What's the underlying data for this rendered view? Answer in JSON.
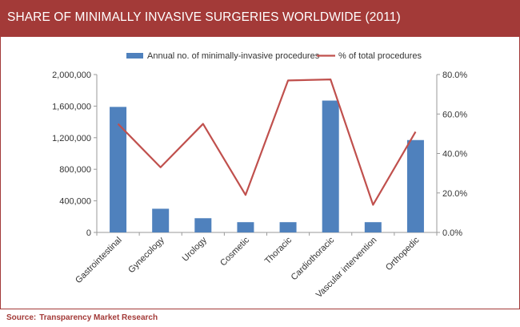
{
  "title": "SHARE OF MINIMALLY INVASIVE SURGERIES WORLDWIDE (2011)",
  "source_label": "Source:",
  "source_text": "Transparency Market Research",
  "colors": {
    "title_bg": "#a33a38",
    "bar": "#4f81bd",
    "line": "#c0504d"
  },
  "chart_data": {
    "type": "bar",
    "categories": [
      "Gastrointestinal",
      "Gynecology",
      "Urology",
      "Cosmetic",
      "Thoracic",
      "Cardiothoracic",
      "Vascular intervention",
      "Orthopedic"
    ],
    "series": [
      {
        "name": "Annual no. of minimally-invasive procedures",
        "type": "bar",
        "axis": "left",
        "values": [
          1590000,
          300000,
          180000,
          130000,
          130000,
          1670000,
          130000,
          1170000
        ]
      },
      {
        "name": "% of total procedures",
        "type": "line",
        "axis": "right",
        "values": [
          55,
          33,
          55,
          19,
          77,
          77.5,
          14,
          51
        ]
      }
    ],
    "y_left": {
      "ticks": [
        "0",
        "400,000",
        "800,000",
        "1,200,000",
        "1,600,000",
        "2,000,000"
      ],
      "ylim": [
        0,
        2000000
      ]
    },
    "y_right": {
      "ticks": [
        "0.0%",
        "20.0%",
        "40.0%",
        "60.0%",
        "80.0%"
      ],
      "ylim": [
        0,
        80
      ]
    },
    "legend_position": "top",
    "grid": false
  }
}
